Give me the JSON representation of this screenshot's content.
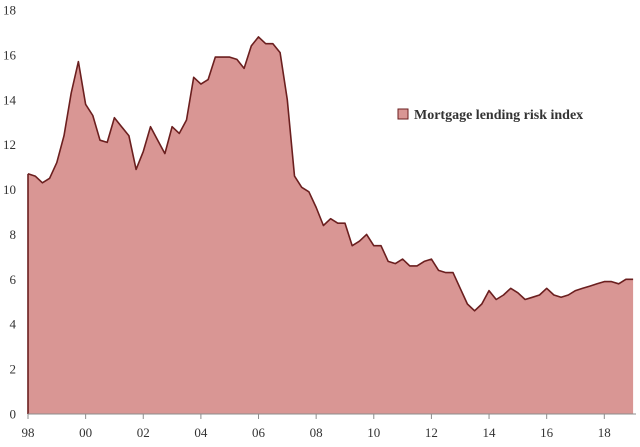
{
  "chart_data": {
    "type": "area",
    "title": "",
    "xlabel": "",
    "ylabel": "",
    "ylim": [
      0,
      18
    ],
    "yticks": [
      0,
      2,
      4,
      6,
      8,
      10,
      12,
      14,
      16,
      18
    ],
    "xlim": [
      1998,
      2019.1
    ],
    "xticks": [
      {
        "x": 1998,
        "label": "98"
      },
      {
        "x": 2000,
        "label": "00"
      },
      {
        "x": 2002,
        "label": "02"
      },
      {
        "x": 2004,
        "label": "04"
      },
      {
        "x": 2006,
        "label": "06"
      },
      {
        "x": 2008,
        "label": "08"
      },
      {
        "x": 2010,
        "label": "10"
      },
      {
        "x": 2012,
        "label": "12"
      },
      {
        "x": 2014,
        "label": "14"
      },
      {
        "x": 2016,
        "label": "16"
      },
      {
        "x": 2018,
        "label": "18"
      }
    ],
    "grid": false,
    "legend_position": "right",
    "series": [
      {
        "name": "Mortgage lending risk index",
        "fill_color": "#d99694",
        "line_color": "#6b1f1f",
        "x": [
          1998.0,
          1998.25,
          1998.5,
          1998.75,
          1999.0,
          1999.25,
          1999.5,
          1999.75,
          2000.0,
          2000.25,
          2000.5,
          2000.75,
          2001.0,
          2001.25,
          2001.5,
          2001.75,
          2002.0,
          2002.25,
          2002.5,
          2002.75,
          2003.0,
          2003.25,
          2003.5,
          2003.75,
          2004.0,
          2004.25,
          2004.5,
          2004.75,
          2005.0,
          2005.25,
          2005.5,
          2005.75,
          2006.0,
          2006.25,
          2006.5,
          2006.75,
          2007.0,
          2007.25,
          2007.5,
          2007.75,
          2008.0,
          2008.25,
          2008.5,
          2008.75,
          2009.0,
          2009.25,
          2009.5,
          2009.75,
          2010.0,
          2010.25,
          2010.5,
          2010.75,
          2011.0,
          2011.25,
          2011.5,
          2011.75,
          2012.0,
          2012.25,
          2012.5,
          2012.75,
          2013.0,
          2013.25,
          2013.5,
          2013.75,
          2014.0,
          2014.25,
          2014.5,
          2014.75,
          2015.0,
          2015.25,
          2015.5,
          2015.75,
          2016.0,
          2016.25,
          2016.5,
          2016.75,
          2017.0,
          2017.25,
          2017.5,
          2017.75,
          2018.0,
          2018.25,
          2018.5,
          2018.75,
          2019.0
        ],
        "values": [
          10.7,
          10.6,
          10.3,
          10.5,
          11.2,
          12.4,
          14.3,
          15.7,
          13.8,
          13.3,
          12.2,
          12.1,
          13.2,
          12.8,
          12.4,
          10.9,
          11.7,
          12.8,
          12.2,
          11.6,
          12.8,
          12.5,
          13.1,
          15.0,
          14.7,
          14.9,
          15.9,
          15.9,
          15.9,
          15.8,
          15.4,
          16.4,
          16.8,
          16.5,
          16.5,
          16.1,
          14.0,
          10.6,
          10.1,
          9.9,
          9.2,
          8.4,
          8.7,
          8.5,
          8.5,
          7.5,
          7.7,
          8.0,
          7.5,
          7.5,
          6.8,
          6.7,
          6.9,
          6.6,
          6.6,
          6.8,
          6.9,
          6.4,
          6.3,
          6.3,
          5.6,
          4.9,
          4.6,
          4.9,
          5.5,
          5.1,
          5.3,
          5.6,
          5.4,
          5.1,
          5.2,
          5.3,
          5.6,
          5.3,
          5.2,
          5.3,
          5.5,
          5.6,
          5.7,
          5.8,
          5.9,
          5.9,
          5.8,
          6.0,
          6.0
        ]
      }
    ]
  }
}
